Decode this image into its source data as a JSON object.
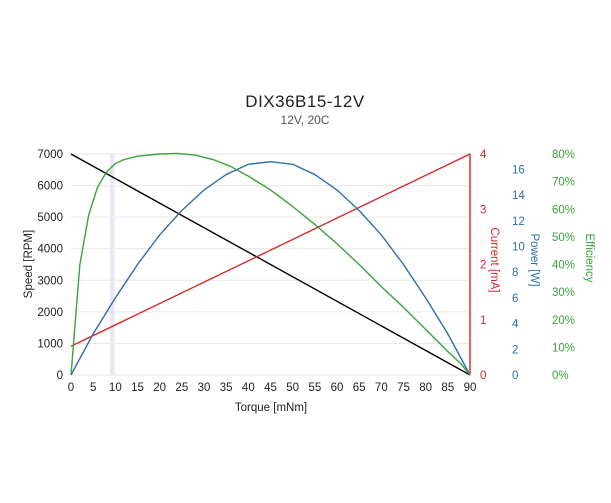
{
  "chart_data": {
    "type": "line",
    "title": "DIX36B15-12V",
    "subtitle": "12V, 20C",
    "xlabel": "Torque [mNm]",
    "xlim": [
      0,
      90
    ],
    "x_ticks": [
      0,
      5,
      10,
      15,
      20,
      25,
      30,
      35,
      40,
      45,
      50,
      55,
      60,
      65,
      70,
      75,
      80,
      85,
      90
    ],
    "grid": true,
    "legend": "none",
    "highlight_band": {
      "x_from": 8.8,
      "x_to": 9.8
    },
    "axes": {
      "speed": {
        "label": "Speed [RPM]",
        "color": "#222222",
        "side": "left",
        "range": [
          0,
          7000
        ],
        "ticks": [
          0,
          1000,
          2000,
          3000,
          4000,
          5000,
          6000,
          7000
        ],
        "tick_labels": [
          "0",
          "1000",
          "2000",
          "3000",
          "4000",
          "5000",
          "6000",
          "7000"
        ]
      },
      "current": {
        "label": "Current [mA]",
        "color": "#d62728",
        "side": "right-1",
        "range": [
          0,
          4
        ],
        "ticks": [
          0,
          1,
          2,
          3,
          4
        ],
        "tick_labels": [
          "0",
          "1",
          "2",
          "3",
          "4"
        ]
      },
      "power": {
        "label": "Power [W]",
        "color": "#2e6fb0",
        "side": "right-2",
        "range": [
          0,
          17.2
        ],
        "ticks": [
          0,
          2,
          4,
          6,
          8,
          10,
          12,
          14,
          16
        ],
        "tick_labels": [
          "0",
          "2",
          "4",
          "6",
          "8",
          "10",
          "12",
          "14",
          "16"
        ]
      },
      "efficiency": {
        "label": "Efficiency",
        "color": "#3aa33a",
        "side": "right-3",
        "range": [
          0,
          80
        ],
        "ticks": [
          0,
          10,
          20,
          30,
          40,
          50,
          60,
          70,
          80
        ],
        "tick_labels": [
          "0%",
          "10%",
          "20%",
          "30%",
          "40%",
          "50%",
          "60%",
          "70%",
          "80%"
        ]
      }
    },
    "series": [
      {
        "axis": "speed",
        "color": "#000000",
        "points": [
          [
            0,
            7000
          ],
          [
            90,
            0
          ]
        ]
      },
      {
        "axis": "current",
        "color": "#d62728",
        "points": [
          [
            0,
            0.52
          ],
          [
            90,
            4.0
          ],
          [
            90,
            0
          ]
        ]
      },
      {
        "axis": "power",
        "color": "#2e6fb0",
        "points": [
          [
            0,
            0
          ],
          [
            5,
            3.2
          ],
          [
            10,
            6.0
          ],
          [
            15,
            8.6
          ],
          [
            20,
            10.9
          ],
          [
            25,
            12.8
          ],
          [
            30,
            14.4
          ],
          [
            35,
            15.6
          ],
          [
            40,
            16.4
          ],
          [
            45,
            16.6
          ],
          [
            50,
            16.4
          ],
          [
            55,
            15.6
          ],
          [
            60,
            14.4
          ],
          [
            65,
            12.8
          ],
          [
            70,
            10.9
          ],
          [
            75,
            8.6
          ],
          [
            80,
            6.0
          ],
          [
            85,
            3.2
          ],
          [
            90,
            0
          ]
        ]
      },
      {
        "axis": "efficiency",
        "color": "#3aa33a",
        "points": [
          [
            0,
            0
          ],
          [
            2,
            40
          ],
          [
            4,
            58
          ],
          [
            6,
            68
          ],
          [
            8,
            73.5
          ],
          [
            10,
            76.5
          ],
          [
            12,
            78
          ],
          [
            15,
            79.2
          ],
          [
            20,
            80
          ],
          [
            24,
            80.2
          ],
          [
            28,
            79.6
          ],
          [
            32,
            78
          ],
          [
            36,
            75.5
          ],
          [
            40,
            72
          ],
          [
            45,
            67
          ],
          [
            50,
            61
          ],
          [
            55,
            54.5
          ],
          [
            60,
            47.5
          ],
          [
            65,
            40
          ],
          [
            70,
            32
          ],
          [
            75,
            24.5
          ],
          [
            80,
            16.5
          ],
          [
            85,
            8.5
          ],
          [
            88,
            4
          ],
          [
            90,
            0
          ]
        ]
      }
    ]
  }
}
